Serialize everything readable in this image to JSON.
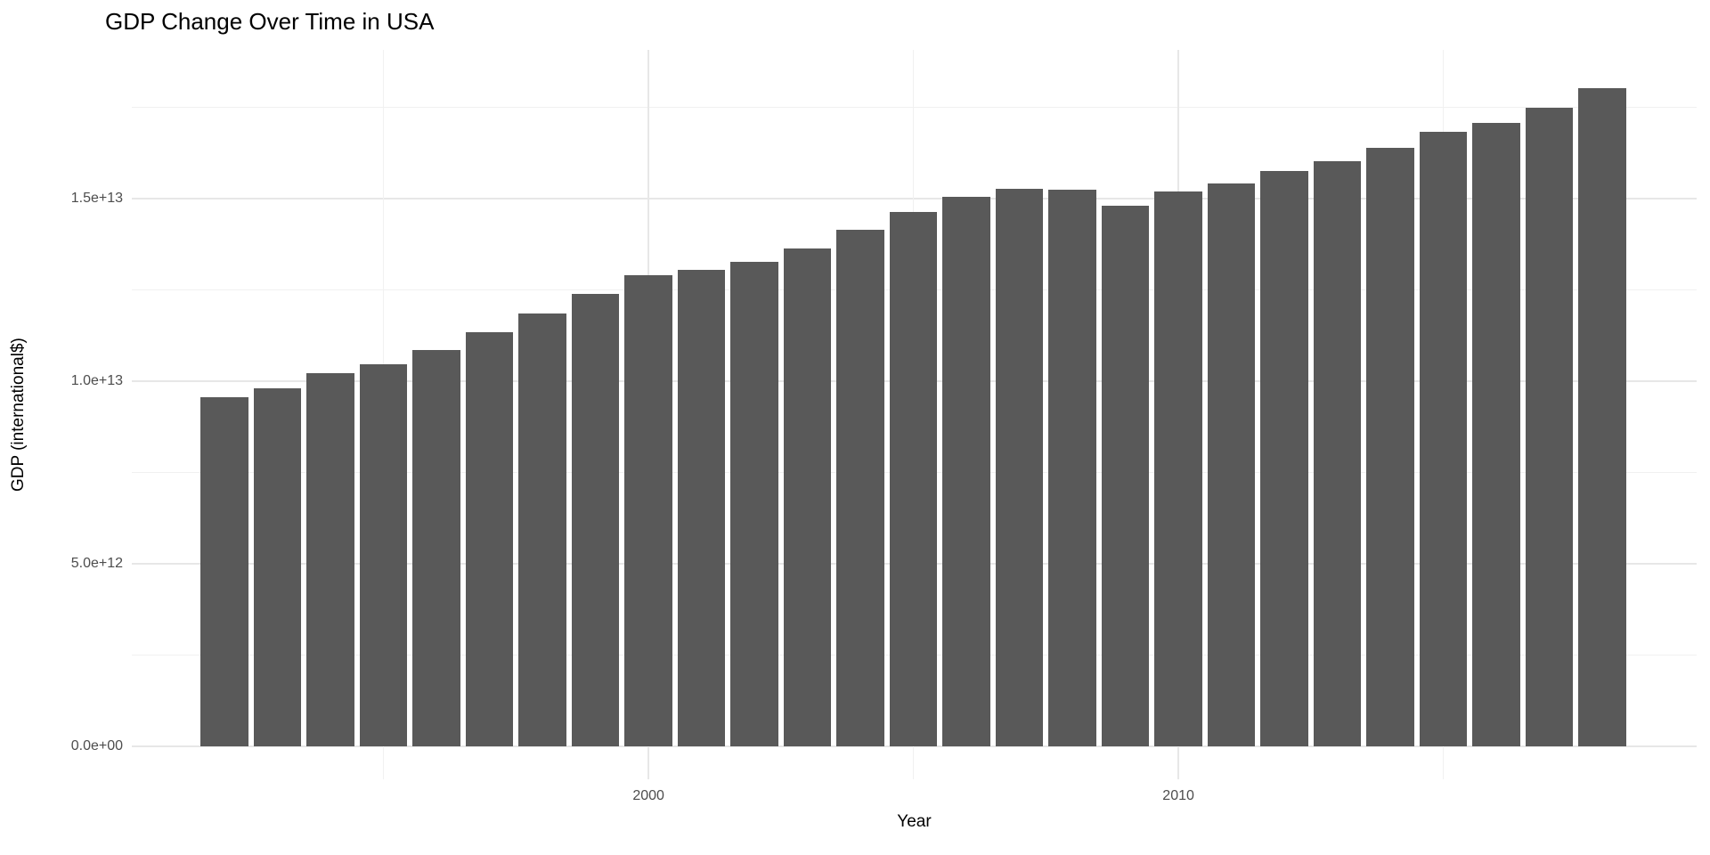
{
  "chart_data": {
    "type": "bar",
    "title": "GDP Change Over Time in USA",
    "xlabel": "Year",
    "ylabel": "GDP (international$)",
    "legend_position": "none",
    "grid": true,
    "bar_color": "#595959",
    "colors": {
      "background": "#ffffff",
      "bar_fill": "#595959",
      "grid_major": "#e7e7e7",
      "grid_minor": "#f1f1f1",
      "axis_text": "#4d4d4d",
      "title_text": "#000000"
    },
    "categories": [
      1992,
      1993,
      1994,
      1995,
      1996,
      1997,
      1998,
      1999,
      2000,
      2001,
      2002,
      2003,
      2004,
      2005,
      2006,
      2007,
      2008,
      2009,
      2010,
      2011,
      2012,
      2013,
      2014,
      2015,
      2016,
      2017,
      2018
    ],
    "values": [
      9550000000000.0,
      9810000000000.0,
      10220000000000.0,
      10460000000000.0,
      10850000000000.0,
      11340000000000.0,
      11850000000000.0,
      12390000000000.0,
      12900000000000.0,
      13050000000000.0,
      13270000000000.0,
      13630000000000.0,
      14150000000000.0,
      14630000000000.0,
      15050000000000.0,
      15270000000000.0,
      15240000000000.0,
      14800000000000.0,
      15190000000000.0,
      15410000000000.0,
      15760000000000.0,
      16020000000000.0,
      16390000000000.0,
      16830000000000.0,
      17070000000000.0,
      17490000000000.0,
      18020000000000.0
    ],
    "bar_width": 0.9,
    "xlim": [
      1990.25,
      2019.78
    ],
    "ylim": [
      -900000000000.0,
      19070000000000.0
    ],
    "x_ticks": [
      {
        "value": 2000,
        "label": "2000"
      },
      {
        "value": 2010,
        "label": "2010"
      }
    ],
    "y_ticks": [
      {
        "value": 0,
        "label": "0.0e+00"
      },
      {
        "value": 5000000000000.0,
        "label": "5.0e+12"
      },
      {
        "value": 10000000000000.0,
        "label": "1.0e+13"
      },
      {
        "value": 15000000000000.0,
        "label": "1.5e+13"
      }
    ],
    "x_major_gridlines": [
      2000,
      2010
    ],
    "x_minor_gridlines": [
      1995,
      2005,
      2015
    ],
    "y_major_gridlines": [
      0,
      5000000000000.0,
      10000000000000.0,
      15000000000000.0
    ],
    "y_minor_gridlines": [
      2500000000000.0,
      7500000000000.0,
      12500000000000.0,
      17500000000000.0
    ]
  }
}
